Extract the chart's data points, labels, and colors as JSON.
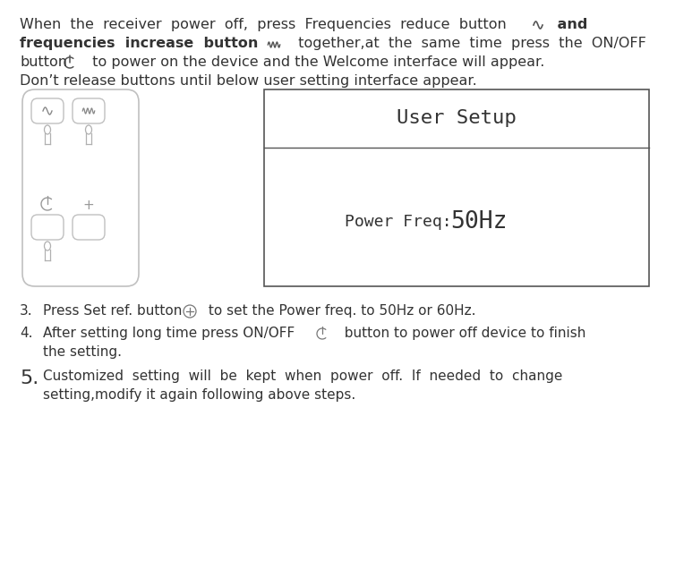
{
  "bg_color": "#ffffff",
  "text_color": "#333333",
  "line1a": "When  the  receiver  power  off,  press  Frequencies  reduce  button",
  "line1b": " and",
  "line2a": "frequencies  increase  button",
  "line2b": "  together,at  the  same  time  press  the  ON/OFF",
  "line3a": "button",
  "line3b": "  to power on the device and the Welcome interface will appear.",
  "line4": "Don’t release buttons until below user setting interface appear.",
  "screen_title": "User Setup",
  "screen_freq": "Power Freq: ",
  "screen_hz": "50Hz",
  "item3a": "Press Set ref. button",
  "item3b": " to set the Power freq. to 50Hz or 60Hz.",
  "item4a": "After setting long time press ON/OFF",
  "item4b": "  button to power off device to finish",
  "item4c": "the setting.",
  "item5a": "Customized  setting  will  be  kept  when  power  off.  If  needed  to  change",
  "item5b": "setting,modify it again following above steps."
}
